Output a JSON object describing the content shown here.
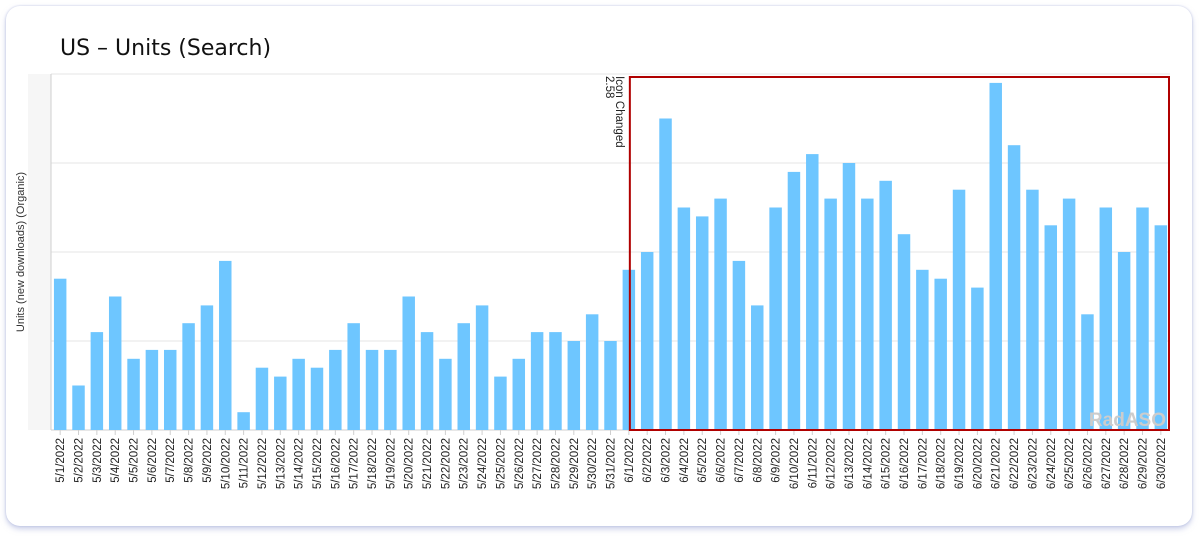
{
  "title": "US – Units (Search)",
  "watermark": "RadASO",
  "colors": {
    "bar": "#6ec6ff",
    "highlight": "#b00000",
    "grid": "#e6e6e6",
    "axis": "#cfcfcf",
    "watermark": "#cccccc"
  },
  "chart_data": {
    "type": "bar",
    "xlabel": "",
    "ylabel": "Units (new downloads) (Organic)",
    "ylim": [
      0,
      4.0
    ],
    "grid": true,
    "y_tick_labels_shown": false,
    "categories": [
      "5/1/2022",
      "5/2/2022",
      "5/3/2022",
      "5/4/2022",
      "5/5/2022",
      "5/6/2022",
      "5/7/2022",
      "5/8/2022",
      "5/9/2022",
      "5/10/2022",
      "5/11/2022",
      "5/12/2022",
      "5/13/2022",
      "5/14/2022",
      "5/15/2022",
      "5/16/2022",
      "5/17/2022",
      "5/18/2022",
      "5/19/2022",
      "5/20/2022",
      "5/21/2022",
      "5/22/2022",
      "5/23/2022",
      "5/24/2022",
      "5/25/2022",
      "5/26/2022",
      "5/27/2022",
      "5/28/2022",
      "5/29/2022",
      "5/30/2022",
      "5/31/2022",
      "6/1/2022",
      "6/2/2022",
      "6/3/2022",
      "6/4/2022",
      "6/5/2022",
      "6/6/2022",
      "6/7/2022",
      "6/8/2022",
      "6/9/2022",
      "6/10/2022",
      "6/11/2022",
      "6/12/2022",
      "6/13/2022",
      "6/14/2022",
      "6/15/2022",
      "6/16/2022",
      "6/17/2022",
      "6/18/2022",
      "6/19/2022",
      "6/20/2022",
      "6/21/2022",
      "6/22/2022",
      "6/23/2022",
      "6/24/2022",
      "6/25/2022",
      "6/26/2022",
      "6/27/2022",
      "6/28/2022",
      "6/29/2022",
      "6/30/2022"
    ],
    "values": [
      1.7,
      0.5,
      1.1,
      1.5,
      0.8,
      0.9,
      0.9,
      1.2,
      1.4,
      1.9,
      0.2,
      0.7,
      0.6,
      0.8,
      0.7,
      0.9,
      1.2,
      0.9,
      0.9,
      1.5,
      1.1,
      0.8,
      1.2,
      1.4,
      0.6,
      0.8,
      1.1,
      1.1,
      1.0,
      1.3,
      1.0,
      1.8,
      2.0,
      3.5,
      2.5,
      2.4,
      2.6,
      1.9,
      1.4,
      2.5,
      2.9,
      3.1,
      2.6,
      3.0,
      2.6,
      2.8,
      2.2,
      1.8,
      1.7,
      2.7,
      1.6,
      3.9,
      3.2,
      2.7,
      2.3,
      2.6,
      1.3,
      2.5,
      2.0,
      2.5,
      2.3
    ],
    "annotation": {
      "category": "6/1/2022",
      "lines": [
        "Icon Changed",
        "2.58"
      ]
    },
    "highlight_range": [
      "6/1/2022",
      "6/30/2022"
    ]
  }
}
